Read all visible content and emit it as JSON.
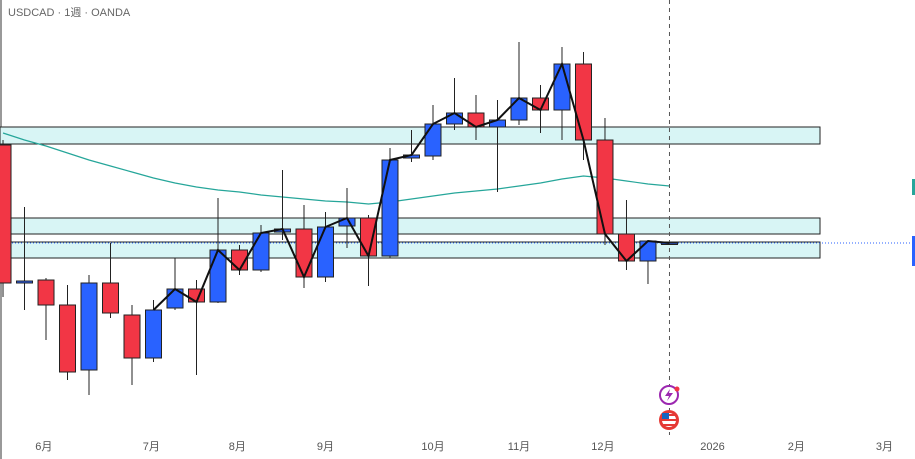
{
  "chart_data": {
    "type": "candlestick",
    "title": "USDCAD · 1週 · OANDA",
    "open": [
      1.401,
      1.3734,
      1.374,
      1.369,
      1.356,
      1.3734,
      1.367,
      1.3584,
      1.3684,
      1.3722,
      1.3696,
      1.38,
      1.376,
      1.3836,
      1.3842,
      1.3746,
      1.3848,
      1.3864,
      1.3788,
      1.3984,
      1.3988,
      1.4052,
      1.4074,
      1.4046,
      1.406,
      1.4104,
      1.408,
      1.4172,
      1.402,
      1.3832,
      1.3778,
      1.3814
    ],
    "high": [
      1.402,
      1.3886,
      1.3744,
      1.373,
      1.375,
      1.3814,
      1.369,
      1.37,
      1.3784,
      1.374,
      1.3904,
      1.381,
      1.385,
      1.396,
      1.389,
      1.3876,
      1.3924,
      1.387,
      1.4004,
      1.404,
      1.409,
      1.4144,
      1.411,
      1.41,
      1.4216,
      1.413,
      1.4206,
      1.4196,
      1.4064,
      1.39,
      1.382,
      1.3816
    ],
    "low": [
      1.3706,
      1.368,
      1.362,
      1.354,
      1.351,
      1.3664,
      1.353,
      1.3576,
      1.368,
      1.355,
      1.3694,
      1.375,
      1.3756,
      1.382,
      1.3724,
      1.3736,
      1.3804,
      1.3728,
      1.3784,
      1.3976,
      1.398,
      1.404,
      1.402,
      1.3916,
      1.405,
      1.4034,
      1.402,
      1.398,
      1.381,
      1.376,
      1.3732,
      1.3812
    ],
    "close": [
      1.3734,
      1.3738,
      1.369,
      1.3556,
      1.3734,
      1.3674,
      1.3584,
      1.368,
      1.3722,
      1.3696,
      1.38,
      1.376,
      1.3834,
      1.3842,
      1.3746,
      1.3846,
      1.3864,
      1.3788,
      1.398,
      1.399,
      1.4052,
      1.4074,
      1.4046,
      1.406,
      1.4104,
      1.408,
      1.4172,
      1.402,
      1.3832,
      1.3778,
      1.3818,
      1.3814
    ],
    "ma_values": [
      1.4034,
      1.402,
      1.4008,
      1.3994,
      1.398,
      1.3968,
      1.3956,
      1.3944,
      1.3934,
      1.3926,
      1.392,
      1.3916,
      1.391,
      1.3906,
      1.3902,
      1.3898,
      1.3896,
      1.3892,
      1.3896,
      1.3902,
      1.3908,
      1.3914,
      1.3918,
      1.3922,
      1.3928,
      1.3934,
      1.3942,
      1.3948,
      1.3944,
      1.3938,
      1.3932,
      1.3928
    ],
    "zones": [
      [
        1.4012,
        1.4046
      ],
      [
        1.3832,
        1.3864
      ],
      [
        1.3784,
        1.3816
      ]
    ],
    "up_color": "#2962ff",
    "down_color": "#f23645",
    "ma_color": "#26a69a",
    "zone_color": "#d8f5f5",
    "xlim": [
      -0.14,
      42.42
    ],
    "ylim": [
      1.3382,
      1.43
    ],
    "xticks": [
      {
        "value": 1.9,
        "label": "6月"
      },
      {
        "value": 6.9,
        "label": "7月"
      },
      {
        "value": 10.9,
        "label": "8月"
      },
      {
        "value": 15,
        "label": "9月"
      },
      {
        "value": 20,
        "label": "10月"
      },
      {
        "value": 24,
        "label": "11月"
      },
      {
        "value": 27.9,
        "label": "12月"
      },
      {
        "value": 33,
        "label": "2026"
      },
      {
        "value": 36.9,
        "label": "2月"
      },
      {
        "value": 41,
        "label": "3月"
      }
    ]
  }
}
